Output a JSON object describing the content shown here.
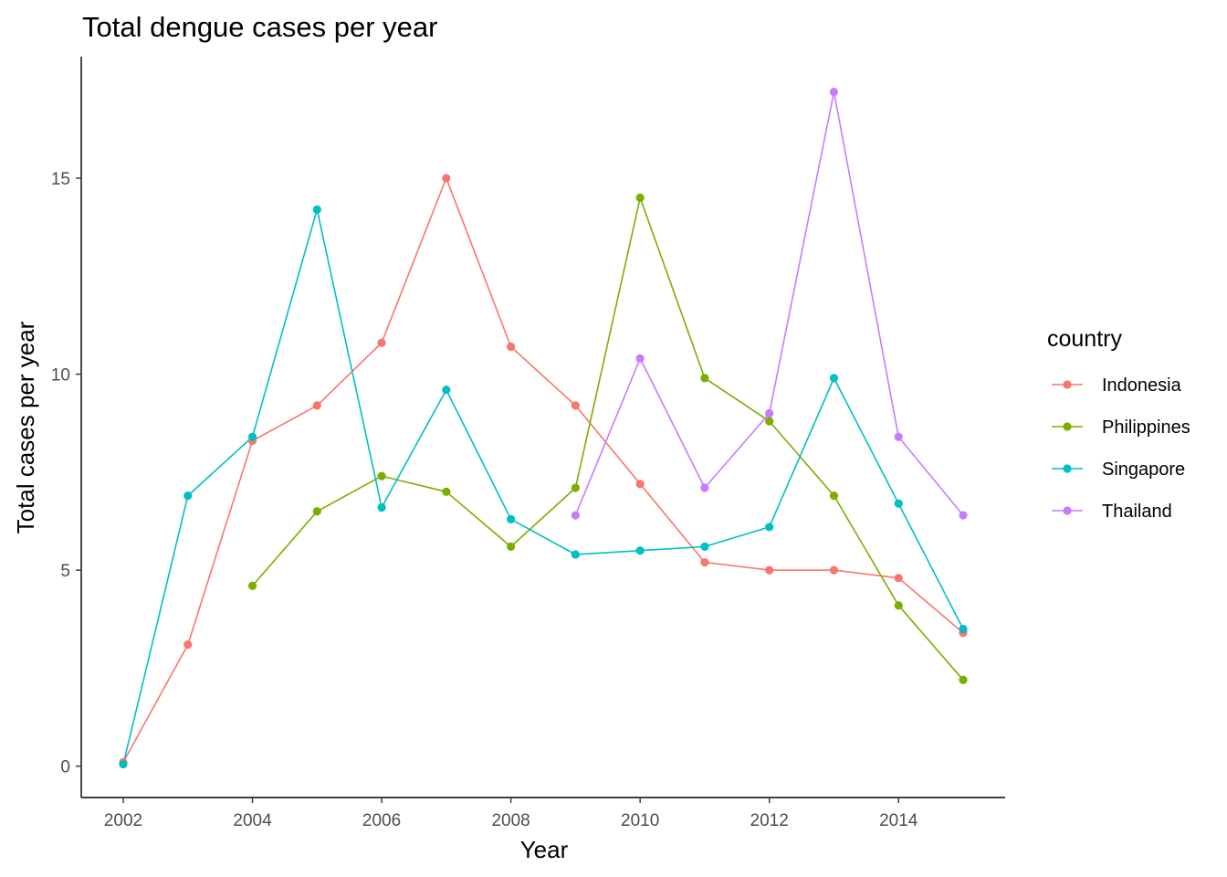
{
  "chart_data": {
    "type": "line",
    "title": "Total dengue cases per year",
    "xlabel": "Year",
    "ylabel": "Total cases per year",
    "xlim": [
      2001.35,
      2015.65
    ],
    "ylim": [
      -0.8,
      18.1
    ],
    "x_ticks": [
      2002,
      2004,
      2006,
      2008,
      2010,
      2012,
      2014
    ],
    "y_ticks": [
      0,
      5,
      10,
      15
    ],
    "grid": false,
    "legend": {
      "title": "country",
      "position": "right"
    },
    "series": [
      {
        "name": "Indonesia",
        "color": "#F8766D",
        "points": [
          {
            "x": 2002,
            "y": 0.1
          },
          {
            "x": 2003,
            "y": 3.1
          },
          {
            "x": 2004,
            "y": 8.3
          },
          {
            "x": 2005,
            "y": 9.2
          },
          {
            "x": 2006,
            "y": 10.8
          },
          {
            "x": 2007,
            "y": 15.0
          },
          {
            "x": 2008,
            "y": 10.7
          },
          {
            "x": 2009,
            "y": 9.2
          },
          {
            "x": 2010,
            "y": 7.2
          },
          {
            "x": 2011,
            "y": 5.2
          },
          {
            "x": 2012,
            "y": 5.0
          },
          {
            "x": 2013,
            "y": 5.0
          },
          {
            "x": 2014,
            "y": 4.8
          },
          {
            "x": 2015,
            "y": 3.4
          }
        ]
      },
      {
        "name": "Philippines",
        "color": "#7CAE00",
        "points": [
          {
            "x": 2004,
            "y": 4.6
          },
          {
            "x": 2005,
            "y": 6.5
          },
          {
            "x": 2006,
            "y": 7.4
          },
          {
            "x": 2007,
            "y": 7.0
          },
          {
            "x": 2008,
            "y": 5.6
          },
          {
            "x": 2009,
            "y": 7.1
          },
          {
            "x": 2010,
            "y": 14.5
          },
          {
            "x": 2011,
            "y": 9.9
          },
          {
            "x": 2012,
            "y": 8.8
          },
          {
            "x": 2013,
            "y": 6.9
          },
          {
            "x": 2014,
            "y": 4.1
          },
          {
            "x": 2015,
            "y": 2.2
          }
        ]
      },
      {
        "name": "Singapore",
        "color": "#00BFC4",
        "points": [
          {
            "x": 2002,
            "y": 0.05
          },
          {
            "x": 2003,
            "y": 6.9
          },
          {
            "x": 2004,
            "y": 8.4
          },
          {
            "x": 2005,
            "y": 14.2
          },
          {
            "x": 2006,
            "y": 6.6
          },
          {
            "x": 2007,
            "y": 9.6
          },
          {
            "x": 2008,
            "y": 6.3
          },
          {
            "x": 2009,
            "y": 5.4
          },
          {
            "x": 2010,
            "y": 5.5
          },
          {
            "x": 2011,
            "y": 5.6
          },
          {
            "x": 2012,
            "y": 6.1
          },
          {
            "x": 2013,
            "y": 9.9
          },
          {
            "x": 2014,
            "y": 6.7
          },
          {
            "x": 2015,
            "y": 3.5
          }
        ]
      },
      {
        "name": "Thailand",
        "color": "#C77CFF",
        "points": [
          {
            "x": 2009,
            "y": 6.4
          },
          {
            "x": 2010,
            "y": 10.4
          },
          {
            "x": 2011,
            "y": 7.1
          },
          {
            "x": 2012,
            "y": 9.0
          },
          {
            "x": 2013,
            "y": 17.2
          },
          {
            "x": 2014,
            "y": 8.4
          },
          {
            "x": 2015,
            "y": 6.4
          }
        ]
      }
    ]
  }
}
